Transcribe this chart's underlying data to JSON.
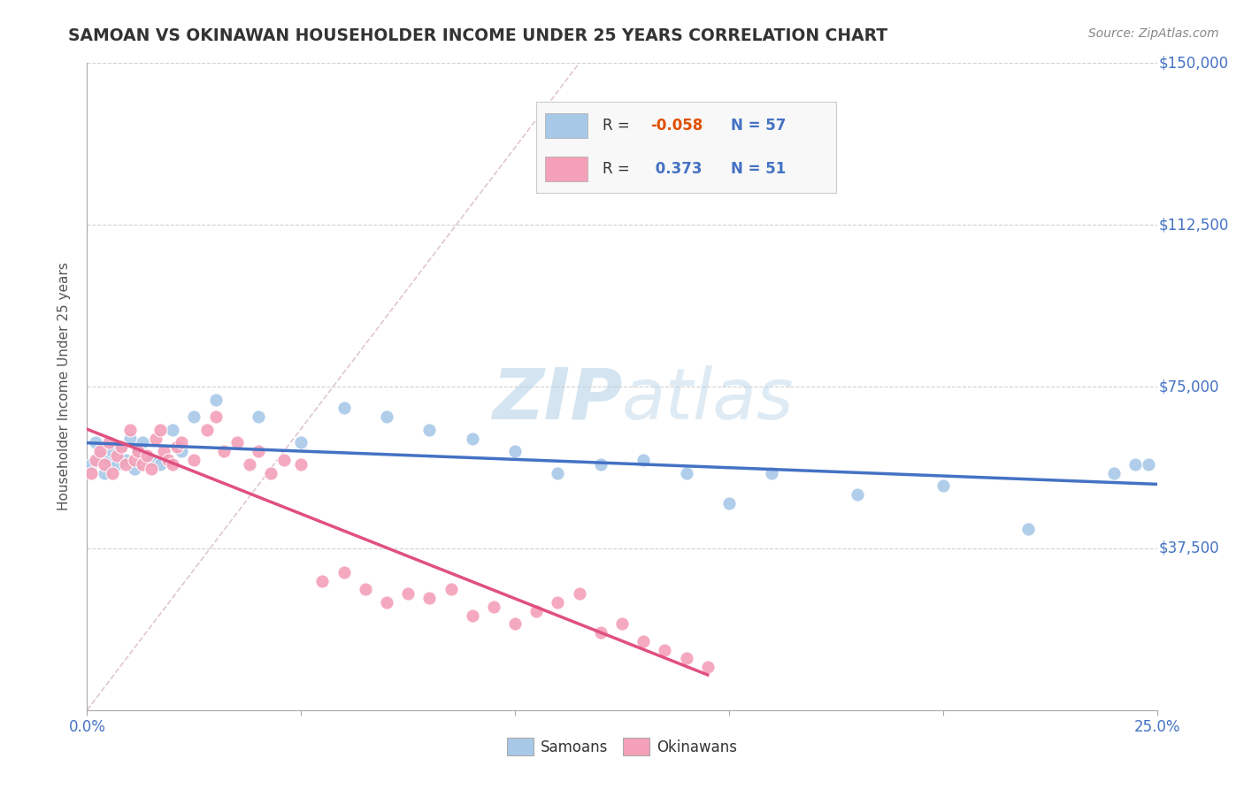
{
  "title": "SAMOAN VS OKINAWAN HOUSEHOLDER INCOME UNDER 25 YEARS CORRELATION CHART",
  "source": "Source: ZipAtlas.com",
  "ylabel": "Householder Income Under 25 years",
  "xlim": [
    0.0,
    0.25
  ],
  "ylim": [
    0,
    150000
  ],
  "yticks": [
    0,
    37500,
    75000,
    112500,
    150000
  ],
  "samoan_color": "#a8c8e8",
  "okinawan_color": "#f4a0b8",
  "samoan_line_color": "#4472c4",
  "okinawan_line_color": "#e05080",
  "watermark_color": "#cce0f0",
  "background_color": "#ffffff",
  "grid_color": "#cccccc",
  "legend_text_color": "#4472c4",
  "legend_r_color_negative": "#e05000",
  "title_color": "#333333",
  "source_color": "#888888",
  "samoan_x": [
    0.001,
    0.002,
    0.003,
    0.004,
    0.005,
    0.006,
    0.007,
    0.008,
    0.009,
    0.01,
    0.011,
    0.012,
    0.013,
    0.015,
    0.017,
    0.02,
    0.022,
    0.025,
    0.03,
    0.04,
    0.05,
    0.06,
    0.07,
    0.08,
    0.09,
    0.1,
    0.11,
    0.12,
    0.13,
    0.14,
    0.15,
    0.16,
    0.18,
    0.2,
    0.22,
    0.24,
    0.245,
    0.248
  ],
  "samoan_y": [
    57000,
    62000,
    59000,
    55000,
    58000,
    60000,
    57000,
    61000,
    58000,
    63000,
    56000,
    60000,
    62000,
    58000,
    57000,
    65000,
    60000,
    68000,
    72000,
    68000,
    62000,
    70000,
    68000,
    65000,
    63000,
    60000,
    55000,
    57000,
    58000,
    55000,
    48000,
    55000,
    50000,
    52000,
    42000,
    55000,
    57000,
    57000
  ],
  "okinawan_x": [
    0.001,
    0.002,
    0.003,
    0.004,
    0.005,
    0.006,
    0.007,
    0.008,
    0.009,
    0.01,
    0.011,
    0.012,
    0.013,
    0.014,
    0.015,
    0.016,
    0.017,
    0.018,
    0.019,
    0.02,
    0.021,
    0.022,
    0.025,
    0.028,
    0.03,
    0.032,
    0.035,
    0.038,
    0.04,
    0.043,
    0.046,
    0.05,
    0.055,
    0.06,
    0.065,
    0.07,
    0.075,
    0.08,
    0.085,
    0.09,
    0.095,
    0.1,
    0.105,
    0.11,
    0.115,
    0.12,
    0.125,
    0.13,
    0.135,
    0.14,
    0.145
  ],
  "okinawan_y": [
    55000,
    58000,
    60000,
    57000,
    62000,
    55000,
    59000,
    61000,
    57000,
    65000,
    58000,
    60000,
    57000,
    59000,
    56000,
    63000,
    65000,
    60000,
    58000,
    57000,
    61000,
    62000,
    58000,
    65000,
    68000,
    60000,
    62000,
    57000,
    60000,
    55000,
    58000,
    57000,
    30000,
    32000,
    28000,
    25000,
    27000,
    26000,
    28000,
    22000,
    24000,
    20000,
    23000,
    25000,
    27000,
    18000,
    20000,
    16000,
    14000,
    12000,
    10000
  ]
}
